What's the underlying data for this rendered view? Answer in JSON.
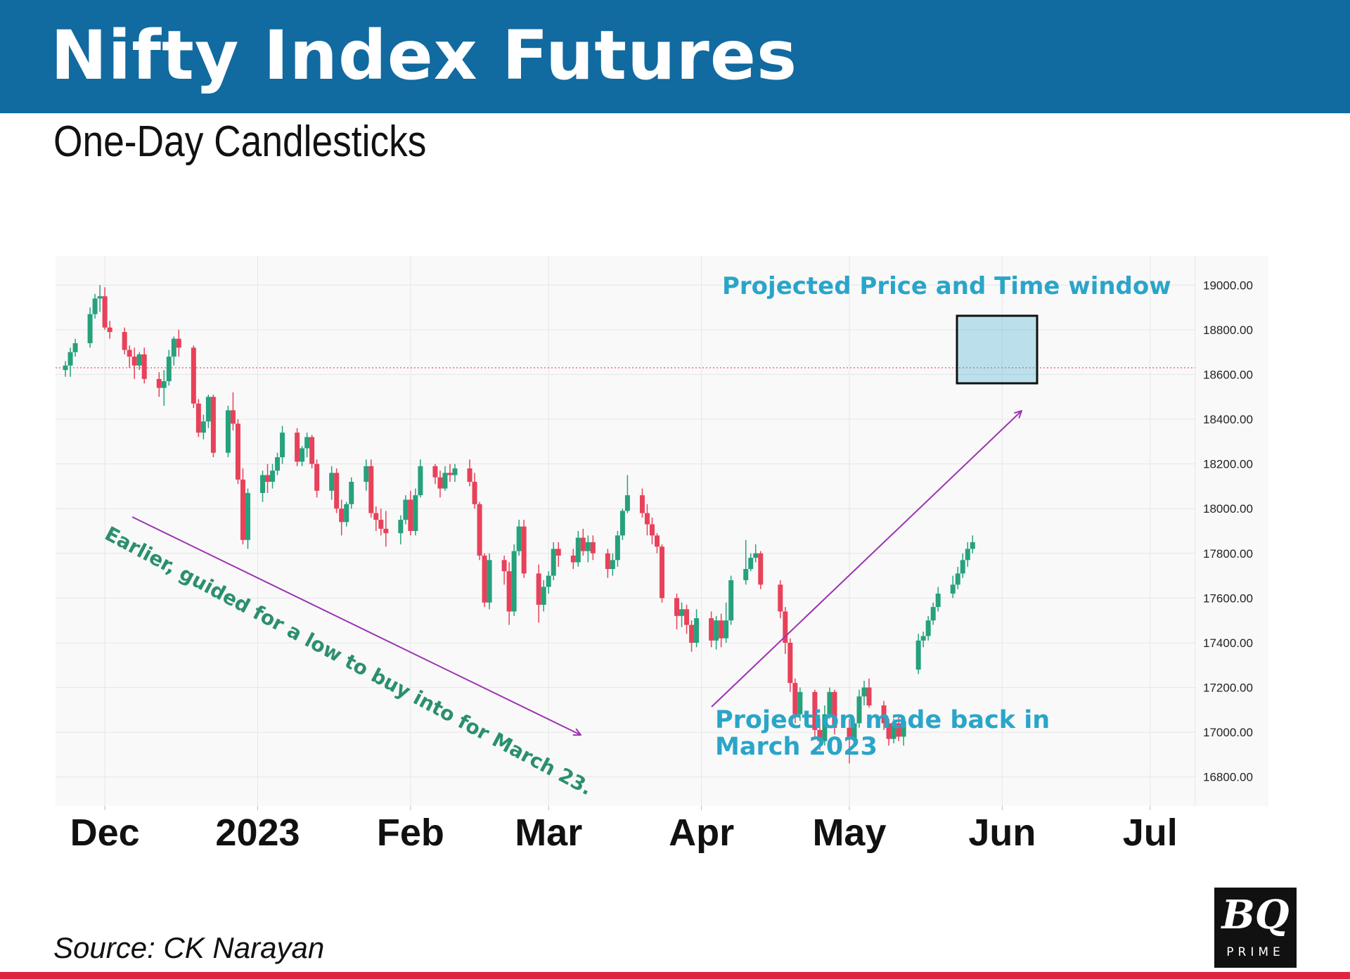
{
  "header": {
    "title": "Nifty Index Futures"
  },
  "subtitle": "One-Day Candlesticks",
  "source": "Source: CK Narayan",
  "logo": {
    "main": "BQ",
    "sub": "PRIME"
  },
  "colors": {
    "header_bg": "#116aa0",
    "up": "#26a17c",
    "down": "#e8415a",
    "accent": "#2aa5c9",
    "arrow": "#9b34b0",
    "annotation_green": "#2b8f6e",
    "bottom_rule": "#e0243f"
  },
  "chart_data": {
    "type": "candlestick",
    "title": "Nifty Index Futures",
    "subtitle": "One-Day Candlesticks",
    "x_axis": {
      "type": "date",
      "range": [
        "2022-11-21",
        "2023-07-25"
      ],
      "month_labels": [
        {
          "text": "Dec",
          "date": "2022-12-01"
        },
        {
          "text": "2023",
          "date": "2023-01-01"
        },
        {
          "text": "Feb",
          "date": "2023-02-01"
        },
        {
          "text": "Mar",
          "date": "2023-03-01"
        },
        {
          "text": "Apr",
          "date": "2023-04-01"
        },
        {
          "text": "May",
          "date": "2023-05-01"
        },
        {
          "text": "Jun",
          "date": "2023-06-01"
        },
        {
          "text": "Jul",
          "date": "2023-07-01"
        }
      ]
    },
    "y_axis": {
      "position": "right",
      "range": [
        16670,
        19130
      ],
      "ticks": [
        "16800.00",
        "17000.00",
        "17200.00",
        "17400.00",
        "17600.00",
        "17800.00",
        "18000.00",
        "18200.00",
        "18400.00",
        "18600.00",
        "18800.00",
        "19000.00"
      ]
    },
    "grid": true,
    "reference_line": {
      "value": 18630,
      "style": "dotted",
      "color": "#e8415a"
    },
    "candles": [
      [
        "2022-11-23",
        18620,
        18660,
        18590,
        18640
      ],
      [
        "2022-11-24",
        18640,
        18720,
        18590,
        18700
      ],
      [
        "2022-11-25",
        18700,
        18760,
        18680,
        18740
      ],
      [
        "2022-11-28",
        18740,
        18900,
        18720,
        18870
      ],
      [
        "2022-11-29",
        18870,
        18960,
        18850,
        18940
      ],
      [
        "2022-11-30",
        18940,
        19000,
        18880,
        18950
      ],
      [
        "2022-12-01",
        18950,
        18990,
        18800,
        18810
      ],
      [
        "2022-12-02",
        18810,
        18840,
        18760,
        18790
      ],
      [
        "2022-12-05",
        18790,
        18810,
        18690,
        18710
      ],
      [
        "2022-12-06",
        18710,
        18730,
        18630,
        18680
      ],
      [
        "2022-12-07",
        18680,
        18720,
        18580,
        18640
      ],
      [
        "2022-12-08",
        18640,
        18700,
        18620,
        18690
      ],
      [
        "2022-12-09",
        18690,
        18720,
        18560,
        18580
      ],
      [
        "2022-12-12",
        18580,
        18610,
        18500,
        18540
      ],
      [
        "2022-12-13",
        18540,
        18620,
        18460,
        18570
      ],
      [
        "2022-12-14",
        18570,
        18710,
        18550,
        18680
      ],
      [
        "2022-12-15",
        18680,
        18770,
        18640,
        18760
      ],
      [
        "2022-12-16",
        18760,
        18800,
        18680,
        18720
      ],
      [
        "2022-12-19",
        18720,
        18730,
        18450,
        18470
      ],
      [
        "2022-12-20",
        18470,
        18490,
        18320,
        18340
      ],
      [
        "2022-12-21",
        18340,
        18420,
        18310,
        18390
      ],
      [
        "2022-12-22",
        18390,
        18510,
        18360,
        18500
      ],
      [
        "2022-12-23",
        18500,
        18510,
        18230,
        18250
      ],
      [
        "2022-12-26",
        18250,
        18460,
        18230,
        18440
      ],
      [
        "2022-12-27",
        18440,
        18520,
        18350,
        18380
      ],
      [
        "2022-12-28",
        18380,
        18400,
        18110,
        18130
      ],
      [
        "2022-12-29",
        18130,
        18180,
        17840,
        17860
      ],
      [
        "2022-12-30",
        17860,
        18090,
        17820,
        18070
      ],
      [
        "2023-01-02",
        18070,
        18170,
        18030,
        18150
      ],
      [
        "2023-01-03",
        18150,
        18200,
        18070,
        18120
      ],
      [
        "2023-01-04",
        18120,
        18200,
        18090,
        18170
      ],
      [
        "2023-01-05",
        18170,
        18250,
        18150,
        18230
      ],
      [
        "2023-01-06",
        18230,
        18370,
        18200,
        18340
      ],
      [
        "2023-01-09",
        18340,
        18360,
        18190,
        18210
      ],
      [
        "2023-01-10",
        18210,
        18280,
        18190,
        18270
      ],
      [
        "2023-01-11",
        18270,
        18340,
        18230,
        18320
      ],
      [
        "2023-01-12",
        18320,
        18330,
        18180,
        18200
      ],
      [
        "2023-01-13",
        18200,
        18220,
        18050,
        18080
      ],
      [
        "2023-01-16",
        18080,
        18190,
        18040,
        18160
      ],
      [
        "2023-01-17",
        18160,
        18180,
        17980,
        18000
      ],
      [
        "2023-01-18",
        18000,
        18040,
        17880,
        17940
      ],
      [
        "2023-01-19",
        17940,
        18030,
        17920,
        18020
      ],
      [
        "2023-01-20",
        18020,
        18140,
        18000,
        18120
      ],
      [
        "2023-01-23",
        18120,
        18220,
        18080,
        18190
      ],
      [
        "2023-01-24",
        18190,
        18220,
        17960,
        17980
      ],
      [
        "2023-01-25",
        17980,
        18010,
        17900,
        17950
      ],
      [
        "2023-01-26",
        17950,
        18000,
        17880,
        17910
      ],
      [
        "2023-01-27",
        17910,
        17990,
        17830,
        17890
      ],
      [
        "2023-01-30",
        17890,
        17970,
        17840,
        17950
      ],
      [
        "2023-01-31",
        17950,
        18060,
        17930,
        18040
      ],
      [
        "2023-02-01",
        18040,
        18080,
        17880,
        17900
      ],
      [
        "2023-02-02",
        17900,
        18090,
        17880,
        18060
      ],
      [
        "2023-02-03",
        18060,
        18220,
        18050,
        18190
      ],
      [
        "2023-02-06",
        18190,
        18200,
        18110,
        18140
      ],
      [
        "2023-02-07",
        18140,
        18170,
        18050,
        18090
      ],
      [
        "2023-02-08",
        18090,
        18190,
        18080,
        18160
      ],
      [
        "2023-02-09",
        18160,
        18200,
        18120,
        18150
      ],
      [
        "2023-02-10",
        18150,
        18200,
        18120,
        18180
      ],
      [
        "2023-02-13",
        18180,
        18220,
        18100,
        18120
      ],
      [
        "2023-02-14",
        18120,
        18160,
        18000,
        18020
      ],
      [
        "2023-02-15",
        18020,
        18030,
        17770,
        17790
      ],
      [
        "2023-02-16",
        17790,
        17800,
        17560,
        17580
      ],
      [
        "2023-02-17",
        17580,
        17800,
        17550,
        17770
      ],
      [
        "2023-02-20",
        17770,
        17790,
        17660,
        17720
      ],
      [
        "2023-02-21",
        17720,
        17760,
        17480,
        17540
      ],
      [
        "2023-02-22",
        17540,
        17840,
        17520,
        17810
      ],
      [
        "2023-02-23",
        17810,
        17950,
        17790,
        17920
      ],
      [
        "2023-02-24",
        17920,
        17950,
        17690,
        17710
      ],
      [
        "2023-02-27",
        17710,
        17750,
        17490,
        17570
      ],
      [
        "2023-02-28",
        17570,
        17680,
        17540,
        17650
      ],
      [
        "2023-03-01",
        17650,
        17720,
        17620,
        17700
      ],
      [
        "2023-03-02",
        17700,
        17850,
        17680,
        17820
      ],
      [
        "2023-03-03",
        17820,
        17850,
        17740,
        17790
      ],
      [
        "2023-03-06",
        17790,
        17820,
        17730,
        17760
      ],
      [
        "2023-03-07",
        17760,
        17900,
        17740,
        17870
      ],
      [
        "2023-03-08",
        17870,
        17910,
        17790,
        17810
      ],
      [
        "2023-03-09",
        17810,
        17880,
        17760,
        17850
      ],
      [
        "2023-03-10",
        17850,
        17880,
        17770,
        17800
      ],
      [
        "2023-03-13",
        17800,
        17820,
        17690,
        17730
      ],
      [
        "2023-03-14",
        17730,
        17800,
        17700,
        17770
      ],
      [
        "2023-03-15",
        17770,
        17900,
        17740,
        17880
      ],
      [
        "2023-03-16",
        17880,
        18000,
        17860,
        17990
      ],
      [
        "2023-03-17",
        17990,
        18150,
        17980,
        18060
      ],
      [
        "2023-03-20",
        18060,
        18090,
        17960,
        17980
      ],
      [
        "2023-03-21",
        17980,
        18020,
        17880,
        17930
      ],
      [
        "2023-03-22",
        17930,
        17960,
        17840,
        17880
      ],
      [
        "2023-03-23",
        17880,
        17890,
        17800,
        17830
      ],
      [
        "2023-03-24",
        17830,
        17840,
        17580,
        17600
      ],
      [
        "2023-03-27",
        17600,
        17620,
        17460,
        17520
      ],
      [
        "2023-03-28",
        17520,
        17580,
        17470,
        17550
      ],
      [
        "2023-03-29",
        17550,
        17570,
        17440,
        17480
      ],
      [
        "2023-03-30",
        17480,
        17500,
        17360,
        17400
      ],
      [
        "2023-03-31",
        17400,
        17550,
        17380,
        17510
      ],
      [
        "2023-04-03",
        17510,
        17540,
        17380,
        17410
      ],
      [
        "2023-04-04",
        17410,
        17520,
        17370,
        17500
      ],
      [
        "2023-04-05",
        17500,
        17530,
        17380,
        17420
      ],
      [
        "2023-04-06",
        17420,
        17580,
        17400,
        17500
      ],
      [
        "2023-04-07",
        17500,
        17700,
        17480,
        17680
      ],
      [
        "2023-04-10",
        17680,
        17860,
        17660,
        17730
      ],
      [
        "2023-04-11",
        17730,
        17800,
        17720,
        17780
      ],
      [
        "2023-04-12",
        17780,
        17840,
        17760,
        17800
      ],
      [
        "2023-04-13",
        17800,
        17810,
        17640,
        17660
      ],
      [
        "2023-04-17",
        17660,
        17680,
        17510,
        17540
      ],
      [
        "2023-04-18",
        17540,
        17560,
        17350,
        17400
      ],
      [
        "2023-04-19",
        17400,
        17420,
        17180,
        17220
      ],
      [
        "2023-04-20",
        17220,
        17240,
        17040,
        17080
      ],
      [
        "2023-04-21",
        17080,
        17200,
        17050,
        17180
      ],
      [
        "2023-04-24",
        17180,
        17190,
        16980,
        17010
      ],
      [
        "2023-04-25",
        17010,
        17060,
        16920,
        16960
      ],
      [
        "2023-04-26",
        16960,
        17120,
        16940,
        17080
      ],
      [
        "2023-04-27",
        17080,
        17200,
        17060,
        17180
      ],
      [
        "2023-04-28",
        17180,
        17190,
        16990,
        17020
      ],
      [
        "2023-05-01",
        17020,
        17060,
        16860,
        16970
      ],
      [
        "2023-05-02",
        16970,
        17060,
        16950,
        17040
      ],
      [
        "2023-05-03",
        17040,
        17190,
        17020,
        17160
      ],
      [
        "2023-05-04",
        17160,
        17230,
        17120,
        17200
      ],
      [
        "2023-05-05",
        17200,
        17240,
        17110,
        17120
      ],
      [
        "2023-05-08",
        17120,
        17140,
        17010,
        17040
      ],
      [
        "2023-05-09",
        17040,
        17060,
        16940,
        16970
      ],
      [
        "2023-05-10",
        16970,
        17060,
        16950,
        17040
      ],
      [
        "2023-05-11",
        17040,
        17080,
        16960,
        16980
      ],
      [
        "2023-05-12",
        16980,
        17070,
        16940,
        17050
      ],
      [
        "2023-05-15",
        17280,
        17440,
        17260,
        17410
      ],
      [
        "2023-05-16",
        17410,
        17450,
        17380,
        17430
      ],
      [
        "2023-05-17",
        17430,
        17520,
        17410,
        17500
      ],
      [
        "2023-05-18",
        17500,
        17580,
        17480,
        17560
      ],
      [
        "2023-05-19",
        17560,
        17650,
        17540,
        17620
      ],
      [
        "2023-05-22",
        17620,
        17700,
        17600,
        17660
      ],
      [
        "2023-05-23",
        17660,
        17740,
        17640,
        17710
      ],
      [
        "2023-05-24",
        17710,
        17800,
        17690,
        17770
      ],
      [
        "2023-05-25",
        17770,
        17850,
        17740,
        17820
      ],
      [
        "2023-05-26",
        17820,
        17880,
        17800,
        17850
      ]
    ],
    "annotations": [
      {
        "text": "Projected Price and Time window",
        "color": "#2aa5c9"
      },
      {
        "text": "Projection made back in March 2023",
        "color": "#2aa5c9"
      },
      {
        "text": "Earlier, guided for a low to buy into for March 23.",
        "color": "#2b8f6e"
      }
    ]
  }
}
